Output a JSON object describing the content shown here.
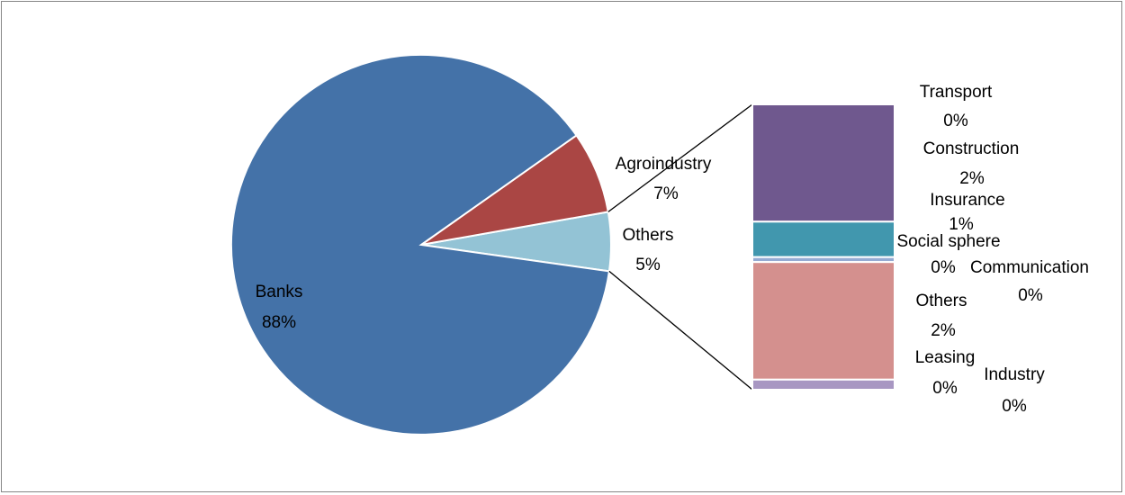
{
  "chart_data": {
    "type": "pie",
    "subtype": "bar-of-pie",
    "colors": {
      "primary": "#4472A8",
      "secondary": "#AA4644",
      "tertiary": "#93C3D5"
    },
    "main_slices": [
      {
        "label": "Banks",
        "value": 88,
        "value_label": "88%",
        "color": "#4472A8"
      },
      {
        "label": "Agroindustry",
        "value": 7,
        "value_label": "7%",
        "color": "#AA4644"
      },
      {
        "label": "Others",
        "value": 5,
        "value_label": "5%",
        "color": "#93C3D5"
      }
    ],
    "breakdown_of": "Others",
    "breakdown": [
      {
        "label": "Transport",
        "value": 0,
        "value_label": "0%",
        "color": "#A897C2",
        "share": 0.035
      },
      {
        "label": "Construction",
        "value": 2,
        "value_label": "2%",
        "color": "#6F588E",
        "share": 0.407
      },
      {
        "label": "Insurance",
        "value": 1,
        "value_label": "1%",
        "color": "#4197AE",
        "share": 0.123
      },
      {
        "label": "Social sphere",
        "value": 0,
        "value_label": "0%",
        "color": "#95ABD3",
        "share": 0.017
      },
      {
        "label": "Communication",
        "value": 0,
        "value_label": "0%",
        "color": "#A9C5E0",
        "share": 0.01
      },
      {
        "label": "Others",
        "value": 2,
        "value_label": "2%",
        "color": "#D4908E",
        "share": 0.408
      },
      {
        "label": "Leasing",
        "value": 0,
        "value_label": "0%",
        "color": "#BDB1D4",
        "share": 0.0
      },
      {
        "label": "Industry",
        "value": 0,
        "value_label": "0%",
        "color": "#A897C2",
        "share": 0.0
      }
    ]
  }
}
